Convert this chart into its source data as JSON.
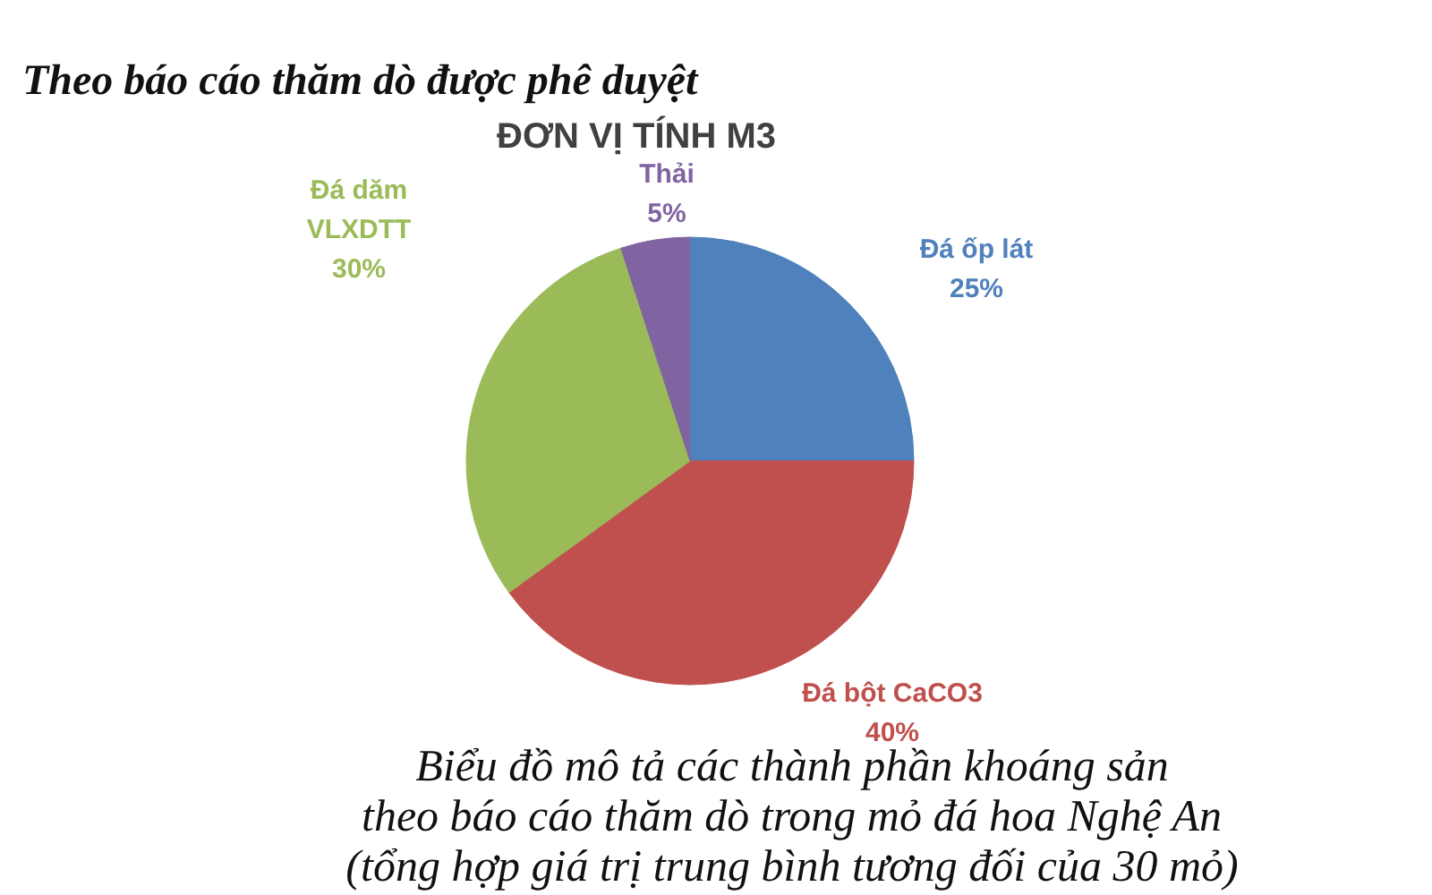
{
  "chart_data": {
    "type": "pie",
    "title": "Theo báo cáo thăm dò được phê duyệt",
    "subtitle": "ĐƠN VỊ TÍNH M3",
    "categories": [
      "Đá ốp lát",
      "Đá bột CaCO3",
      "Đá dăm VLXDTT",
      "Thải"
    ],
    "values": [
      25,
      40,
      30,
      5
    ],
    "colors": [
      "#4f81bd",
      "#c0504d",
      "#9bbb59",
      "#8064a2"
    ],
    "value_labels": [
      "25%",
      "40%",
      "30%",
      "5%"
    ],
    "annotations": [
      "Biểu đồ mô tả các thành phần khoáng sản\ntheo báo cáo thăm dò trong mỏ đá hoa Nghệ An\n(tổng hợp giá trị trung bình tương đối của 30 mỏ)"
    ]
  }
}
